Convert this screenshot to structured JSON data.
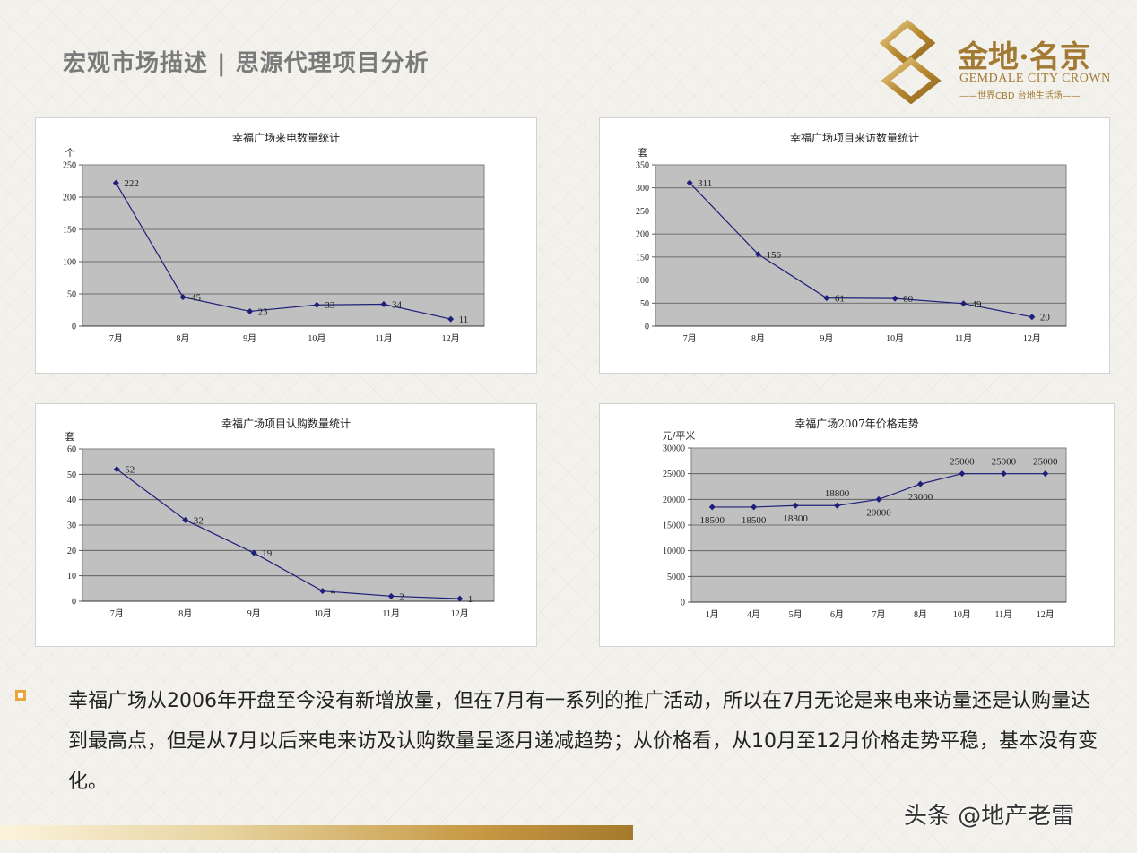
{
  "header": {
    "title": "宏观市场描述 | 思源代理项目分析"
  },
  "logo": {
    "name_cn": "金地·名京",
    "name_en": "GEMDALE CITY CROWN",
    "tagline": "——世界CBD 台地生活场——",
    "color": "#a27a34"
  },
  "colors": {
    "plot_bg": "#c0c0c0",
    "series_line": "#1f1f7a",
    "accent_gold": "#c79a45",
    "bullet": "#e9a63e"
  },
  "chart_data": [
    {
      "type": "line",
      "title": "幸福广场来电数量统计",
      "ylabel": "个",
      "categories": [
        "7月",
        "8月",
        "9月",
        "10月",
        "11月",
        "12月"
      ],
      "values": [
        222,
        45,
        23,
        33,
        34,
        11
      ],
      "data_labels": [
        "222",
        "45",
        "23",
        "33",
        "34",
        "11"
      ],
      "ylim": [
        0,
        250
      ],
      "yticks": [
        0,
        50,
        100,
        150,
        200,
        250
      ],
      "grid": true
    },
    {
      "type": "line",
      "title": "幸福广场项目来访数量统计",
      "ylabel": "套",
      "categories": [
        "7月",
        "8月",
        "9月",
        "10月",
        "11月",
        "12月"
      ],
      "values": [
        311,
        156,
        61,
        60,
        49,
        20
      ],
      "data_labels": [
        "311",
        "156",
        "61",
        "60",
        "49",
        "20"
      ],
      "ylim": [
        0,
        350
      ],
      "yticks": [
        0,
        50,
        100,
        150,
        200,
        250,
        300,
        350
      ],
      "grid": true
    },
    {
      "type": "line",
      "title": "幸福广场项目认购数量统计",
      "ylabel": "套",
      "categories": [
        "7月",
        "8月",
        "9月",
        "10月",
        "11月",
        "12月"
      ],
      "values": [
        52,
        32,
        19,
        4,
        2,
        1
      ],
      "data_labels": [
        "52",
        "32",
        "19",
        "4",
        "2",
        "1"
      ],
      "ylim": [
        0,
        60
      ],
      "yticks": [
        0,
        10,
        20,
        30,
        40,
        50,
        60
      ],
      "grid": true
    },
    {
      "type": "line",
      "title": "幸福广场2007年价格走势",
      "ylabel": "元/平米",
      "categories": [
        "1月",
        "4月",
        "5月",
        "6月",
        "7月",
        "8月",
        "10月",
        "11月",
        "12月"
      ],
      "values": [
        18500,
        18500,
        18800,
        18800,
        20000,
        23000,
        25000,
        25000,
        25000
      ],
      "data_labels": [
        "18500",
        "18500",
        "18800",
        "18800",
        "20000",
        "23000",
        "25000",
        "25000",
        "25000"
      ],
      "ylim": [
        0,
        30000
      ],
      "yticks": [
        0,
        5000,
        10000,
        15000,
        20000,
        25000,
        30000
      ],
      "grid": true
    }
  ],
  "summary": {
    "text": "幸福广场从2006年开盘至今没有新增放量，但在7月有一系列的推广活动，所以在7月无论是来电来访量还是认购量达到最高点，但是从7月以后来电来访及认购数量呈逐月递减趋势；从价格看，从10月至12月价格走势平稳，基本没有变化。"
  },
  "watermark": {
    "text": "头条 @地产老雷"
  }
}
